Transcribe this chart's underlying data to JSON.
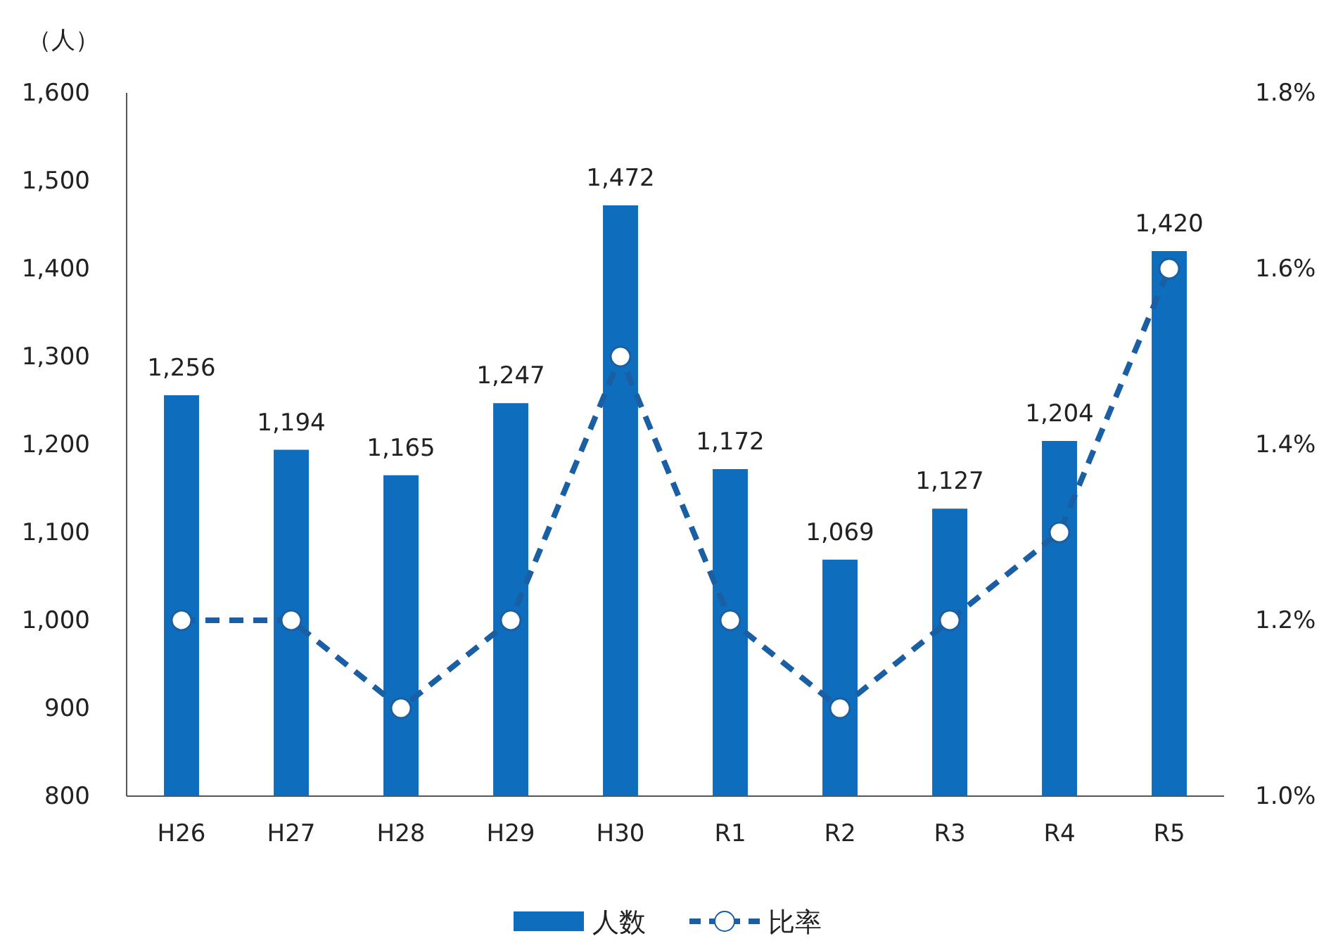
{
  "chart_data": {
    "type": "bar",
    "ylabel": "（人）",
    "categories": [
      "H26",
      "H27",
      "H28",
      "H29",
      "H30",
      "R1",
      "R2",
      "R3",
      "R4",
      "R5"
    ],
    "series": [
      {
        "name": "人数",
        "color": "#0e6ebd",
        "values": [
          1256,
          1194,
          1165,
          1247,
          1472,
          1172,
          1069,
          1127,
          1204,
          1420
        ],
        "value_labels": [
          "1,256",
          "1,194",
          "1,165",
          "1,247",
          "1,472",
          "1,172",
          "1,069",
          "1,127",
          "1,204",
          "1,420"
        ]
      },
      {
        "name": "比率",
        "type": "line",
        "axis": "y2",
        "color": "#1a5fa3",
        "marker": "circle",
        "line_style": "dashed",
        "values": [
          1.2,
          1.2,
          1.1,
          1.2,
          1.5,
          1.2,
          1.1,
          1.2,
          1.3,
          1.6
        ]
      }
    ],
    "ylim": [
      800,
      1600
    ],
    "yticks": [
      {
        "value": 800,
        "label": "800"
      },
      {
        "value": 900,
        "label": "900"
      },
      {
        "value": 1000,
        "label": "1,000"
      },
      {
        "value": 1100,
        "label": "1,100"
      },
      {
        "value": 1200,
        "label": "1,200"
      },
      {
        "value": 1300,
        "label": "1,300"
      },
      {
        "value": 1400,
        "label": "1,400"
      },
      {
        "value": 1500,
        "label": "1,500"
      },
      {
        "value": 1600,
        "label": "1,600"
      }
    ],
    "y2lim": [
      1.0,
      1.8
    ],
    "y2ticks": [
      {
        "value": 1.0,
        "label": "1.0%"
      },
      {
        "value": 1.2,
        "label": "1.2%"
      },
      {
        "value": 1.4,
        "label": "1.4%"
      },
      {
        "value": 1.6,
        "label": "1.6%"
      },
      {
        "value": 1.8,
        "label": "1.8%"
      }
    ],
    "grid": false,
    "legend": "bottom"
  }
}
